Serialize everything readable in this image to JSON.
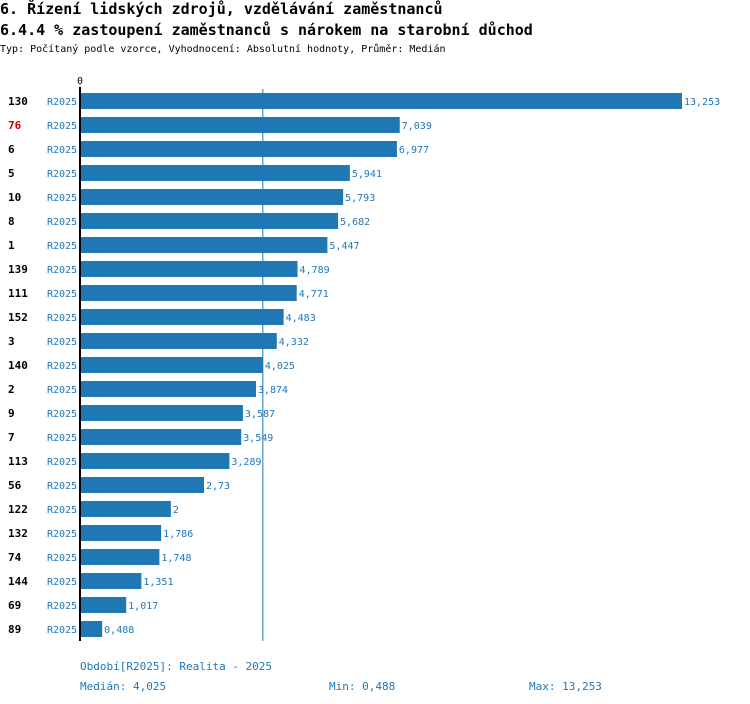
{
  "header": {
    "title": "6. Řízení lidských zdrojů, vzdělávání zaměstnanců",
    "subtitle": "6.4.4 % zastoupení zaměstnanců s nárokem na starobní důchod",
    "info": "Typ: Počítaný podle vzorce, Vyhodnocení: Absolutní hodnoty, Průměr: Medián"
  },
  "colors": {
    "bar": "#1f77b4",
    "highlight_label": "#cc0000",
    "text": "#000000",
    "value_text": "#1f77b4"
  },
  "chart_data": {
    "type": "bar",
    "orientation": "horizontal",
    "period_label": "R2025",
    "highlight": "76",
    "median_line": 4.025,
    "xlim": [
      0,
      13.253
    ],
    "x_tick_label": "0",
    "categories": [
      "130",
      "76",
      "6",
      "5",
      "10",
      "8",
      "1",
      "139",
      "111",
      "152",
      "3",
      "140",
      "2",
      "9",
      "7",
      "113",
      "56",
      "122",
      "132",
      "74",
      "144",
      "69",
      "89"
    ],
    "values": [
      13.253,
      7.039,
      6.977,
      5.941,
      5.793,
      5.682,
      5.447,
      4.789,
      4.771,
      4.483,
      4.332,
      4.025,
      3.874,
      3.587,
      3.549,
      3.289,
      2.73,
      2,
      1.786,
      1.748,
      1.351,
      1.017,
      0.488
    ],
    "value_labels": [
      "13,253",
      "7,039",
      "6,977",
      "5,941",
      "5,793",
      "5,682",
      "5,447",
      "4,789",
      "4,771",
      "4,483",
      "4,332",
      "4,025",
      "3,874",
      "3,587",
      "3,549",
      "3,289",
      "2,73",
      "2",
      "1,786",
      "1,748",
      "1,351",
      "1,017",
      "0,488"
    ]
  },
  "footer": {
    "period": "Období[R2025]: Realita - 2025",
    "median": "Medián: 4,025",
    "min": "Min: 0,488",
    "max": "Max: 13,253"
  }
}
